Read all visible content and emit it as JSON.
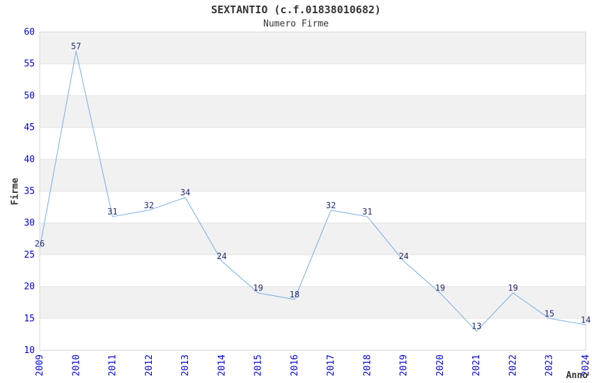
{
  "chart_data": {
    "type": "line",
    "title": "SEXTANTIO (c.f.01838010682)",
    "subtitle": "Numero Firme",
    "xlabel": "Anno",
    "ylabel": "Firme",
    "categories": [
      "2009",
      "2010",
      "2011",
      "2012",
      "2013",
      "2014",
      "2015",
      "2016",
      "2017",
      "2018",
      "2019",
      "2020",
      "2021",
      "2022",
      "2023",
      "2024"
    ],
    "values": [
      26,
      57,
      31,
      32,
      34,
      24,
      19,
      18,
      32,
      31,
      24,
      19,
      13,
      19,
      15,
      14
    ],
    "ylim": [
      10,
      60
    ],
    "ytick_step": 5,
    "grid": "horizontal",
    "legend_position": "none",
    "shaded_bands": [
      [
        15,
        20
      ],
      [
        25,
        30
      ],
      [
        35,
        40
      ],
      [
        45,
        50
      ],
      [
        55,
        60
      ]
    ],
    "data_labels_visible": true,
    "colors": {
      "line": "#74ace8",
      "tick_label": "#0000dd",
      "data_label": "#232a70",
      "band": "#f1f1f1",
      "grid": "#e3e3e3",
      "border": "#d6d6de",
      "text": "#333333",
      "background": "#ffffff"
    }
  }
}
